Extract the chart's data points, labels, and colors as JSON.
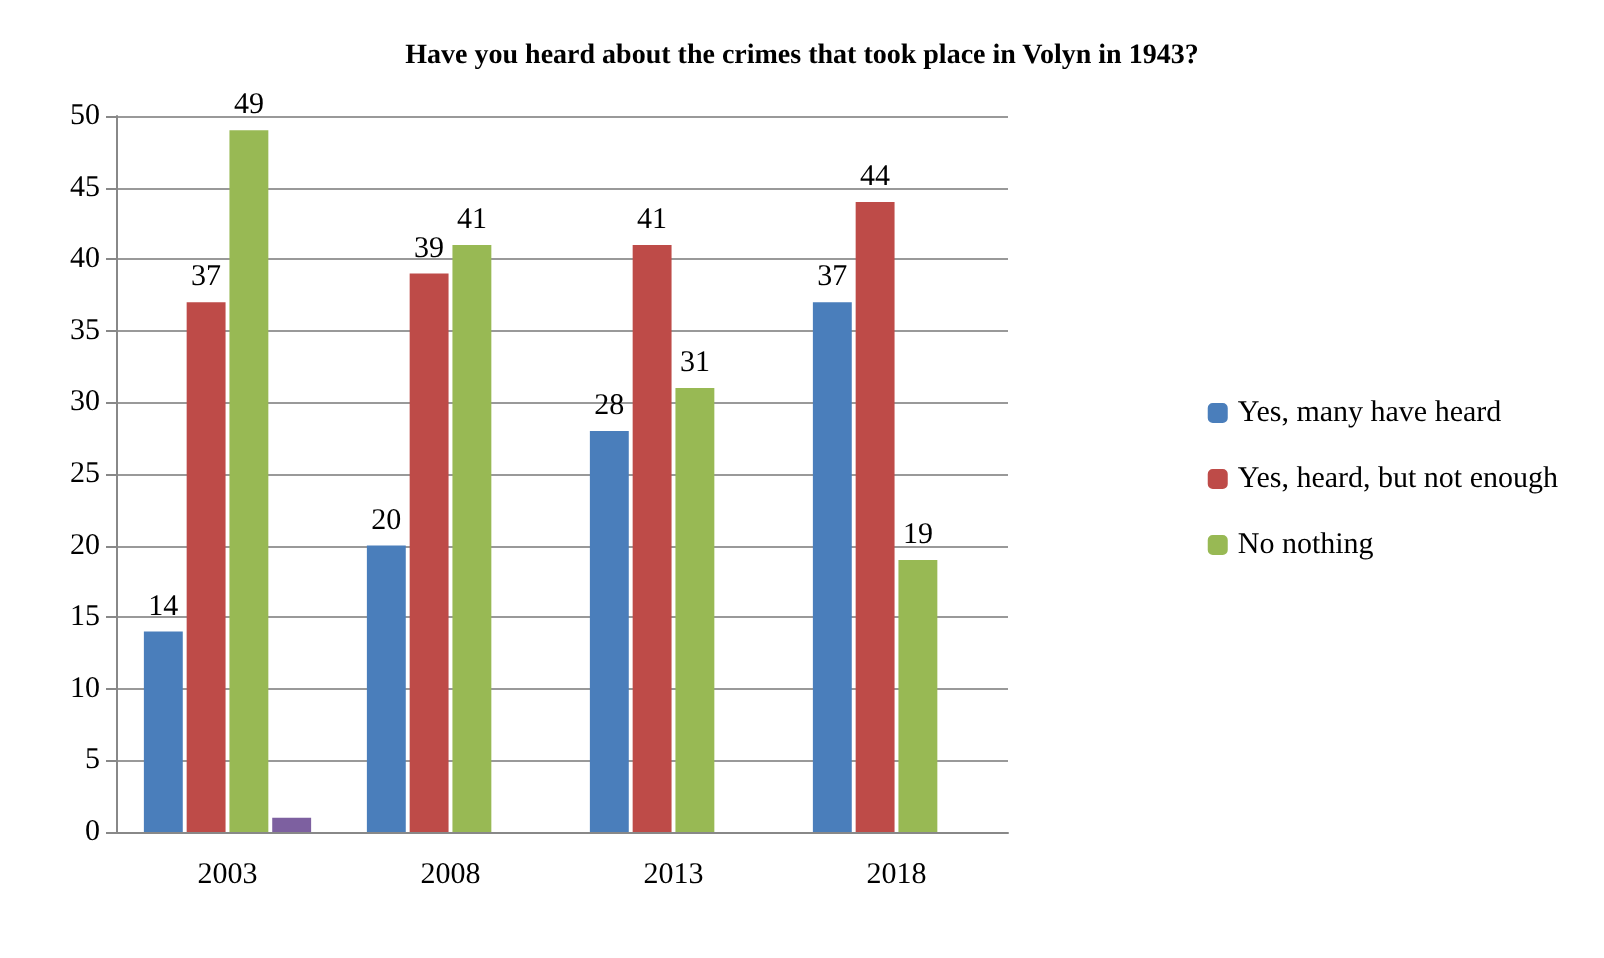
{
  "chart_data": {
    "type": "bar",
    "title": "Have you heard about the crimes that took place in Volyn in 1943?",
    "categories": [
      "2003",
      "2008",
      "2013",
      "2018"
    ],
    "series": [
      {
        "name": "Yes, many have heard",
        "color": "#4a7ebb",
        "values": [
          14,
          20,
          28,
          37
        ],
        "value_labels": [
          "14",
          "20",
          "28",
          "37"
        ]
      },
      {
        "name": "Yes, heard, but not enough",
        "color": "#be4b48",
        "values": [
          37,
          39,
          41,
          44
        ],
        "value_labels": [
          "37",
          "39",
          "41",
          "44"
        ]
      },
      {
        "name": "No nothing",
        "color": "#98b954",
        "values": [
          49,
          41,
          31,
          19
        ],
        "value_labels": [
          "49",
          "41",
          "31",
          "19"
        ]
      },
      {
        "color": "#7d60a0",
        "values": [
          1,
          null,
          null,
          null
        ]
      }
    ],
    "ylim": [
      0,
      50
    ],
    "yticks": [
      0,
      5,
      10,
      15,
      20,
      25,
      30,
      35,
      40,
      45,
      50
    ],
    "grid": "y",
    "legend": "right"
  }
}
